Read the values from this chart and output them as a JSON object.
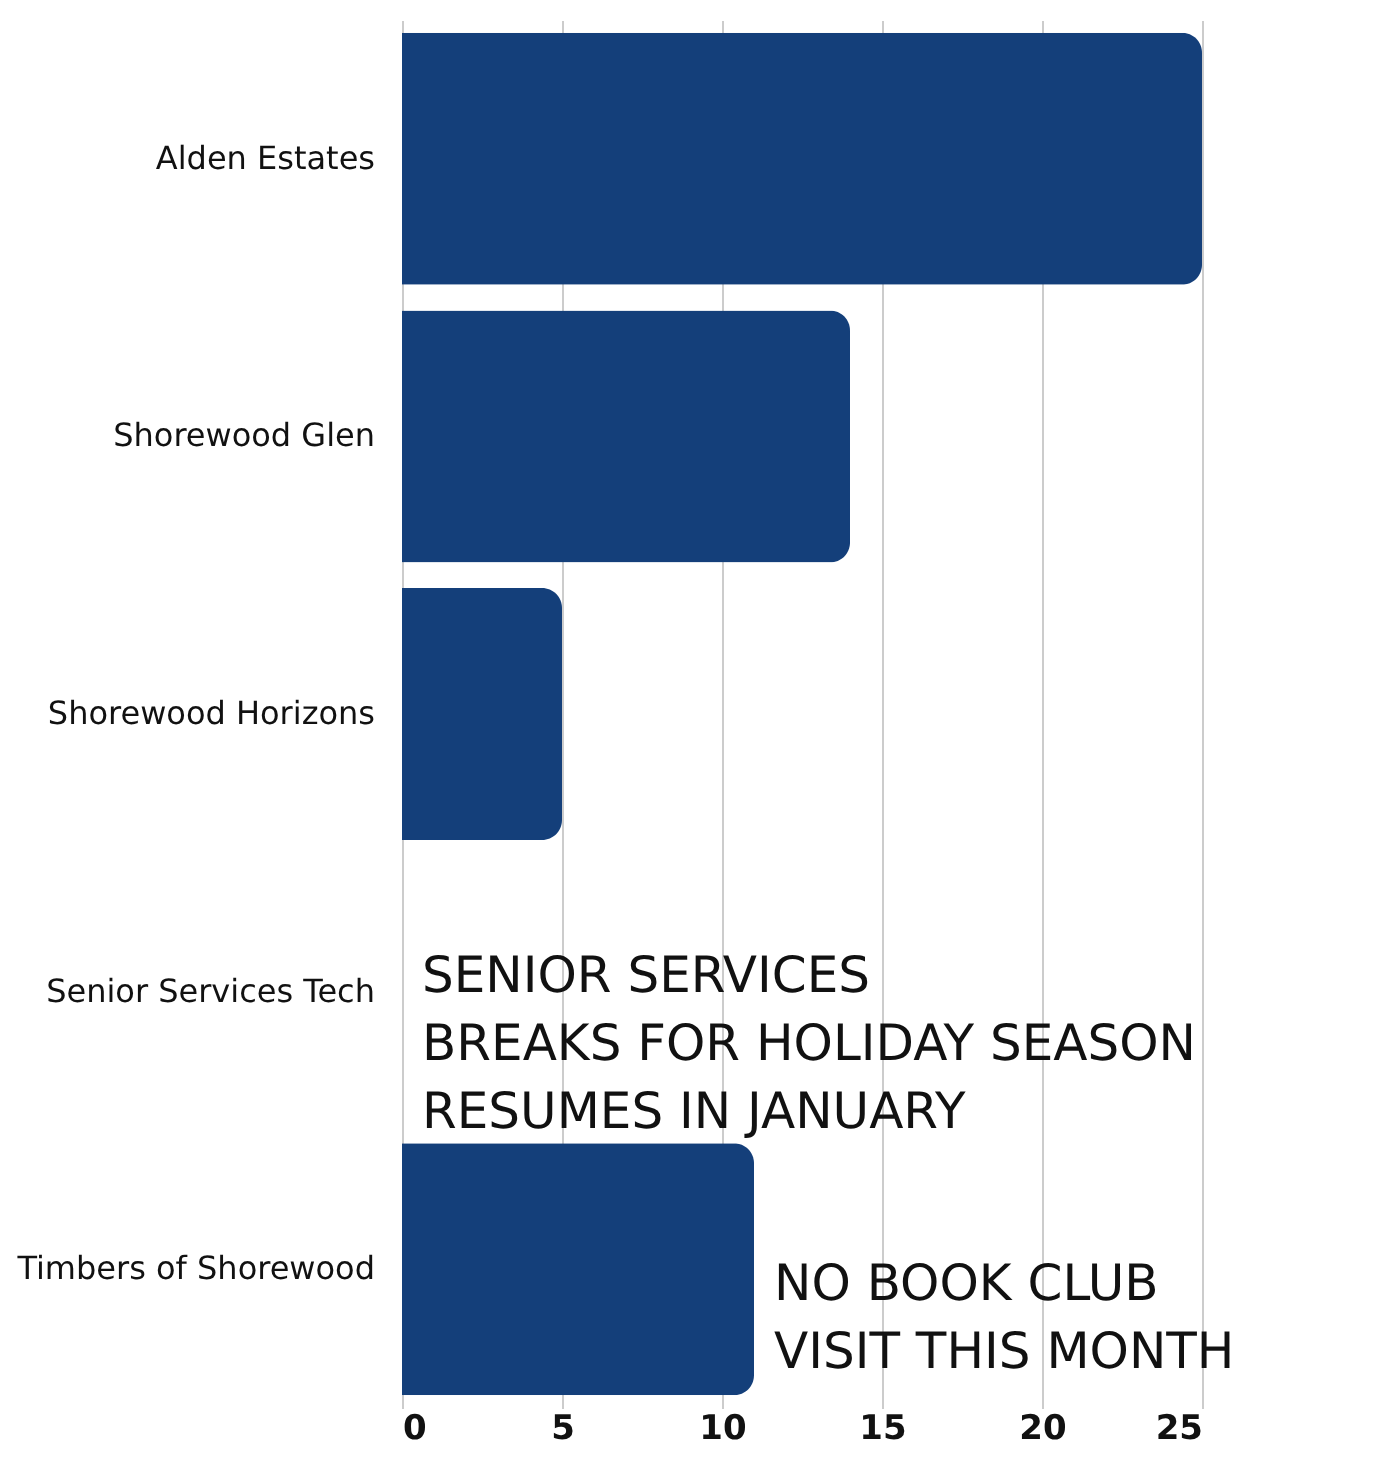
{
  "chart_data": {
    "type": "bar",
    "orientation": "horizontal",
    "categories": [
      "Alden Estates",
      "Shorewood Glen",
      "Shorewood Horizons",
      "Senior Services Tech",
      "Timbers of Shorewood"
    ],
    "values": [
      25,
      14,
      5,
      null,
      11
    ],
    "color": "#143f7a",
    "xlim": [
      0,
      25
    ],
    "xticks": [
      0,
      5,
      10,
      15,
      20,
      25
    ],
    "grid": "x",
    "annotations": [
      "SENIOR SERVICES\nBREAKS FOR HOLIDAY SEASON\nRESUMES IN JANUARY",
      "NO BOOK CLUB\nVISIT THIS MONTH"
    ]
  }
}
